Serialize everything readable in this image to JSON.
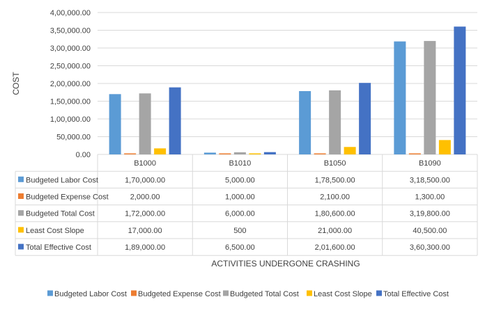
{
  "chart_data": {
    "type": "bar",
    "title": "",
    "xlabel": "ACTIVITIES UNDERGONE CRASHING",
    "ylabel": "COST",
    "ylim": [
      0,
      400000
    ],
    "ytick_values": [
      0,
      50000,
      100000,
      150000,
      200000,
      250000,
      300000,
      350000,
      400000
    ],
    "ytick_labels": [
      "0.00",
      "50,000.00",
      "1,00,000.00",
      "1,50,000.00",
      "2,00,000.00",
      "2,50,000.00",
      "3,00,000.00",
      "3,50,000.00",
      "4,00,000.00"
    ],
    "categories": [
      "B1000",
      "B1010",
      "B1050",
      "B1090"
    ],
    "grid": true,
    "legend_position": "bottom",
    "series": [
      {
        "name": "Budgeted Labor Cost",
        "color": "#5b9bd5",
        "values": [
          170000,
          5000,
          178500,
          318500
        ],
        "labels": [
          "1,70,000.00",
          "5,000.00",
          "1,78,500.00",
          "3,18,500.00"
        ]
      },
      {
        "name": "Budgeted Expense Cost",
        "color": "#ed7d31",
        "values": [
          2000,
          1000,
          2100,
          1300
        ],
        "labels": [
          "2,000.00",
          "1,000.00",
          "2,100.00",
          "1,300.00"
        ]
      },
      {
        "name": "Budgeted Total Cost",
        "color": "#a5a5a5",
        "values": [
          172000,
          6000,
          180600,
          319800
        ],
        "labels": [
          "1,72,000.00",
          "6,000.00",
          "1,80,600.00",
          "3,19,800.00"
        ]
      },
      {
        "name": "Least Cost Slope",
        "color": "#ffc000",
        "values": [
          17000,
          500,
          21000,
          40500
        ],
        "labels": [
          "17,000.00",
          "500",
          "21,000.00",
          "40,500.00"
        ]
      },
      {
        "name": "Total Effective Cost",
        "color": "#4472c4",
        "values": [
          189000,
          6500,
          201600,
          360300
        ],
        "labels": [
          "1,89,000.00",
          "6,500.00",
          "2,01,600.00",
          "3,60,300.00"
        ]
      }
    ]
  }
}
